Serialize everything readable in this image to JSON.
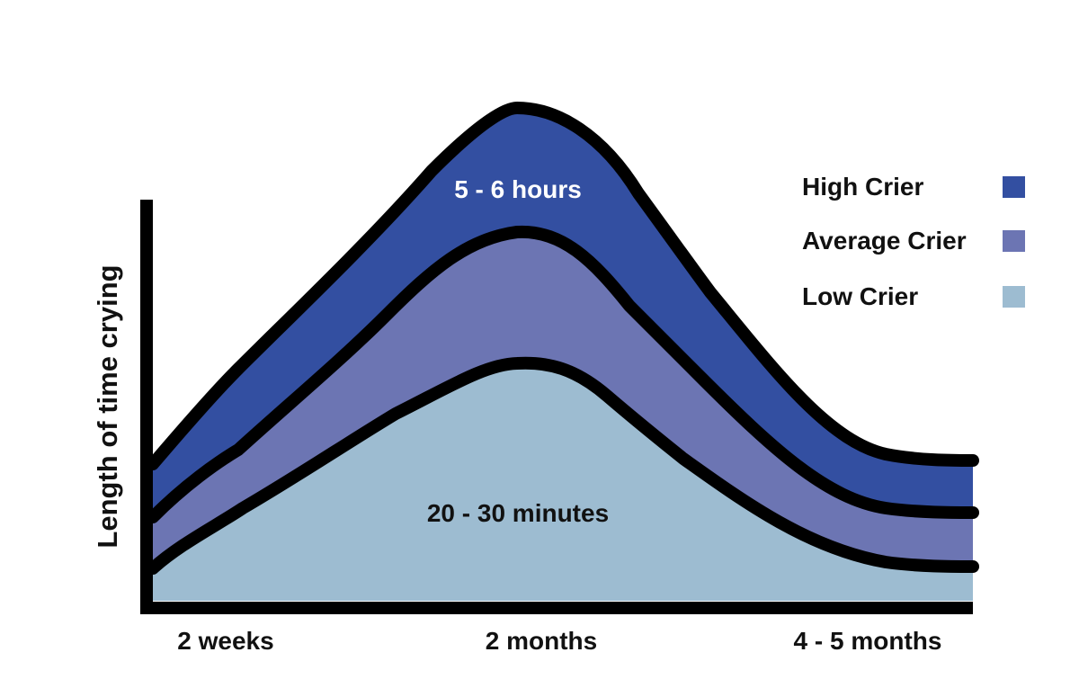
{
  "chart_data": {
    "type": "area",
    "ylabel": "Length of time crying",
    "categories": [
      "2 weeks",
      "2 months",
      "4 - 5 months"
    ],
    "series": [
      {
        "name": "High Crier",
        "color": "#334FA1",
        "points": [
          [
            0,
            0.28
          ],
          [
            0.45,
            0.86
          ],
          [
            1,
            0.27
          ]
        ]
      },
      {
        "name": "Average Crier",
        "color": "#6C75B3",
        "points": [
          [
            0,
            0.16
          ],
          [
            0.45,
            0.66
          ],
          [
            1,
            0.16
          ]
        ]
      },
      {
        "name": "Low Crier",
        "color": "#9DBCD1",
        "points": [
          [
            0,
            0.05
          ],
          [
            0.45,
            0.42
          ],
          [
            1,
            0.05
          ]
        ]
      }
    ],
    "annotations": {
      "high": "5 - 6 hours",
      "low": "20 - 30 minutes"
    },
    "legend_position": "top-right",
    "grid": false
  }
}
